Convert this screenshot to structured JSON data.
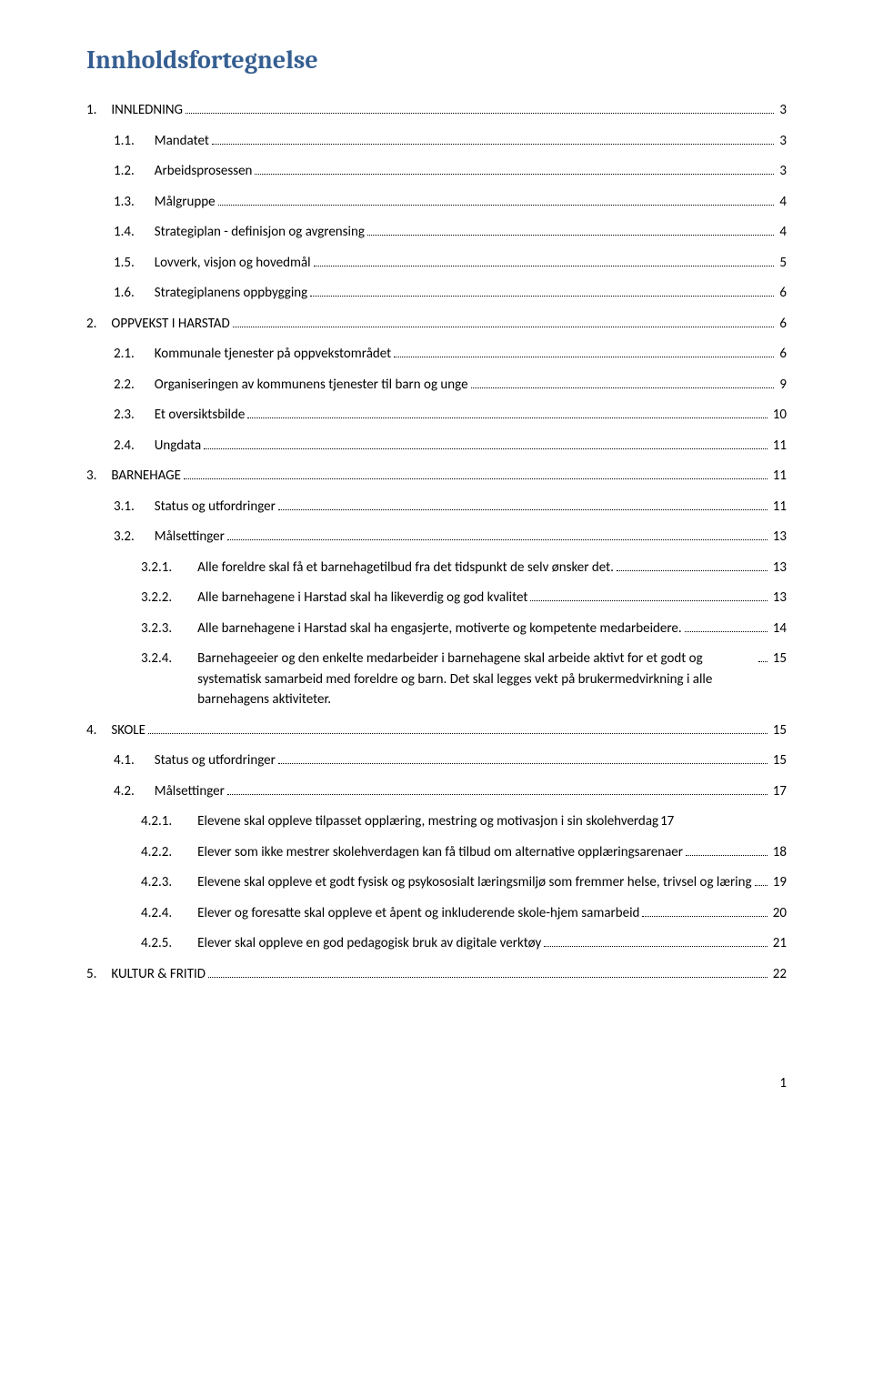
{
  "doc_title": "Innholdsfortegnelse",
  "footer_page": "1",
  "colors": {
    "title": "#365f91",
    "text": "#000000",
    "background": "#ffffff"
  },
  "fonts": {
    "title_family": "Cambria",
    "body_family": "Calibri",
    "title_size_pt": 21,
    "body_size_pt": 11
  },
  "entries": [
    {
      "level": 1,
      "num": "1.",
      "label": "INNLEDNING",
      "page": "3"
    },
    {
      "level": 2,
      "num": "1.1.",
      "label": "Mandatet",
      "page": "3"
    },
    {
      "level": 2,
      "num": "1.2.",
      "label": "Arbeidsprosessen",
      "page": "3"
    },
    {
      "level": 2,
      "num": "1.3.",
      "label": "Målgruppe",
      "page": "4"
    },
    {
      "level": 2,
      "num": "1.4.",
      "label": "Strategiplan - definisjon og avgrensing",
      "page": "4"
    },
    {
      "level": 2,
      "num": "1.5.",
      "label": "Lovverk, visjon og hovedmål",
      "page": "5"
    },
    {
      "level": 2,
      "num": "1.6.",
      "label": "Strategiplanens oppbygging",
      "page": "6"
    },
    {
      "level": 1,
      "num": "2.",
      "label": "OPPVEKST I HARSTAD",
      "page": "6"
    },
    {
      "level": 2,
      "num": "2.1.",
      "label": "Kommunale tjenester på oppvekstområdet",
      "page": "6"
    },
    {
      "level": 2,
      "num": "2.2.",
      "label": "Organiseringen av kommunens tjenester til barn og unge",
      "page": "9"
    },
    {
      "level": 2,
      "num": "2.3.",
      "label": "Et oversiktsbilde",
      "page": "10"
    },
    {
      "level": 2,
      "num": "2.4.",
      "label": "Ungdata",
      "page": "11"
    },
    {
      "level": 1,
      "num": "3.",
      "label": "BARNEHAGE",
      "page": "11"
    },
    {
      "level": 2,
      "num": "3.1.",
      "label": "Status og utfordringer",
      "page": "11"
    },
    {
      "level": 2,
      "num": "3.2.",
      "label": "Målsettinger",
      "page": "13"
    },
    {
      "level": 3,
      "num": "3.2.1.",
      "label": "Alle foreldre skal få et barnehagetilbud fra det tidspunkt de selv ønsker det.",
      "page": "13"
    },
    {
      "level": 3,
      "num": "3.2.2.",
      "label": "Alle barnehagene i Harstad skal ha likeverdig og god kvalitet",
      "page": "13"
    },
    {
      "level": 3,
      "num": "3.2.3.",
      "label": "Alle barnehagene i Harstad skal ha engasjerte, motiverte og kompetente medarbeidere.",
      "page": "14",
      "wrap": true
    },
    {
      "level": 3,
      "num": "3.2.4.",
      "label": "Barnehageeier og den enkelte medarbeider i barnehagene skal arbeide aktivt for et godt og systematisk samarbeid med foreldre og barn. Det skal legges vekt på brukermedvirkning i alle barnehagens aktiviteter.",
      "page": "15",
      "wrap": true
    },
    {
      "level": 1,
      "num": "4.",
      "label": "SKOLE",
      "page": "15"
    },
    {
      "level": 2,
      "num": "4.1.",
      "label": "Status og utfordringer",
      "page": "15"
    },
    {
      "level": 2,
      "num": "4.2.",
      "label": "Målsettinger",
      "page": "17"
    },
    {
      "level": 3,
      "num": "4.2.1.",
      "label": "Elevene skal oppleve tilpasset opplæring, mestring og motivasjon i sin skolehverdag",
      "page": "17",
      "samepage": true
    },
    {
      "level": 3,
      "num": "4.2.2.",
      "label": "Elever som ikke mestrer skolehverdagen kan få tilbud om alternative opplæringsarenaer",
      "page": "18",
      "wrap": true
    },
    {
      "level": 3,
      "num": "4.2.3.",
      "label": "Elevene skal oppleve et godt fysisk og psykososialt læringsmiljø som fremmer helse, trivsel og læring",
      "page": "19",
      "wrap": true
    },
    {
      "level": 3,
      "num": "4.2.4.",
      "label": "Elever og foresatte skal oppleve et åpent og inkluderende skole-hjem samarbeid",
      "page": "20"
    },
    {
      "level": 3,
      "num": "4.2.5.",
      "label": "Elever skal oppleve en god pedagogisk bruk av digitale verktøy",
      "page": "21"
    },
    {
      "level": 1,
      "num": "5.",
      "label": "KULTUR & FRITID",
      "page": "22"
    }
  ]
}
